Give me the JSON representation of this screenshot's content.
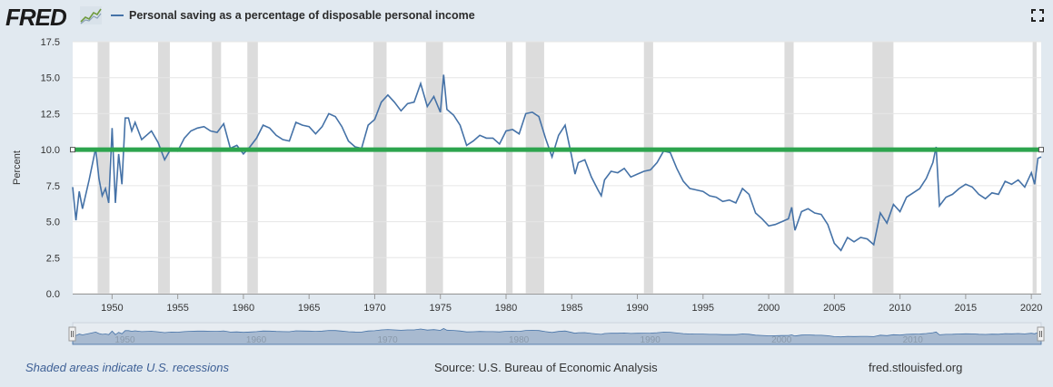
{
  "header": {
    "logo_text": "FRED",
    "series_title": "Personal saving as a percentage of disposable personal income",
    "colors": {
      "line": "#4572a7",
      "threshold": "#2da44e",
      "recession": "#dcdcdc"
    }
  },
  "footer": {
    "recession_note": "Shaded areas indicate U.S. recessions",
    "source": "Source: U.S. Bureau of Economic Analysis",
    "site": "fred.stlouisfed.org"
  },
  "chart_data": {
    "type": "line",
    "ylabel": "Percent",
    "xlabel": "",
    "xlim": [
      1947.0,
      2020.75
    ],
    "ylim": [
      0,
      17.5
    ],
    "yticks": [
      "0.0",
      "2.5",
      "5.0",
      "7.5",
      "10.0",
      "12.5",
      "15.0",
      "17.5"
    ],
    "xticks": [
      "1950",
      "1955",
      "1960",
      "1965",
      "1970",
      "1975",
      "1980",
      "1985",
      "1990",
      "1995",
      "2000",
      "2005",
      "2010",
      "2015",
      "2020"
    ],
    "grid": true,
    "threshold_line": 10.0,
    "navigator_labels": [
      "1950",
      "1960",
      "1970",
      "1980",
      "1990",
      "2000",
      "2010"
    ],
    "recessions": [
      [
        1948.9,
        1949.8
      ],
      [
        1953.5,
        1954.4
      ],
      [
        1957.6,
        1958.3
      ],
      [
        1960.3,
        1961.1
      ],
      [
        1969.9,
        1970.9
      ],
      [
        1973.9,
        1975.2
      ],
      [
        1980.0,
        1980.5
      ],
      [
        1981.5,
        1982.9
      ],
      [
        1990.5,
        1991.2
      ],
      [
        2001.2,
        2001.9
      ],
      [
        2007.9,
        2009.5
      ],
      [
        2020.1,
        2020.4
      ]
    ],
    "series": [
      {
        "name": "Personal saving as a percentage of disposable personal income",
        "x": [
          1947.0,
          1947.25,
          1947.5,
          1947.75,
          1948.25,
          1948.75,
          1949.0,
          1949.25,
          1949.5,
          1949.75,
          1950.0,
          1950.25,
          1950.5,
          1950.75,
          1951.0,
          1951.25,
          1951.5,
          1951.75,
          1952.25,
          1952.75,
          1953.0,
          1953.5,
          1954.0,
          1954.5,
          1955.0,
          1955.5,
          1956.0,
          1956.5,
          1957.0,
          1957.5,
          1958.0,
          1958.5,
          1959.0,
          1959.5,
          1960.0,
          1960.5,
          1961.0,
          1961.5,
          1962.0,
          1962.5,
          1963.0,
          1963.5,
          1964.0,
          1964.5,
          1965.0,
          1965.5,
          1966.0,
          1966.5,
          1967.0,
          1967.5,
          1968.0,
          1968.5,
          1969.0,
          1969.5,
          1970.0,
          1970.5,
          1971.0,
          1971.5,
          1972.0,
          1972.5,
          1973.0,
          1973.5,
          1974.0,
          1974.5,
          1975.0,
          1975.25,
          1975.5,
          1976.0,
          1976.5,
          1977.0,
          1977.5,
          1978.0,
          1978.5,
          1979.0,
          1979.5,
          1980.0,
          1980.5,
          1981.0,
          1981.5,
          1982.0,
          1982.5,
          1983.0,
          1983.5,
          1984.0,
          1984.5,
          1985.0,
          1985.25,
          1985.5,
          1986.0,
          1986.5,
          1987.0,
          1987.25,
          1987.5,
          1988.0,
          1988.5,
          1989.0,
          1989.5,
          1990.0,
          1990.5,
          1991.0,
          1991.5,
          1992.0,
          1992.5,
          1993.0,
          1993.5,
          1994.0,
          1994.5,
          1995.0,
          1995.5,
          1996.0,
          1996.5,
          1997.0,
          1997.5,
          1998.0,
          1998.5,
          1999.0,
          1999.5,
          2000.0,
          2000.5,
          2001.0,
          2001.5,
          2001.75,
          2002.0,
          2002.5,
          2003.0,
          2003.5,
          2004.0,
          2004.5,
          2005.0,
          2005.5,
          2006.0,
          2006.5,
          2007.0,
          2007.5,
          2008.0,
          2008.25,
          2008.5,
          2009.0,
          2009.5,
          2010.0,
          2010.5,
          2011.0,
          2011.5,
          2012.0,
          2012.5,
          2012.75,
          2013.0,
          2013.5,
          2014.0,
          2014.5,
          2015.0,
          2015.5,
          2016.0,
          2016.5,
          2017.0,
          2017.5,
          2018.0,
          2018.5,
          2019.0,
          2019.5,
          2020.0,
          2020.25,
          2020.5,
          2020.75
        ],
        "y": [
          7.4,
          5.1,
          7.1,
          5.9,
          7.9,
          10.1,
          8.0,
          6.8,
          7.3,
          6.3,
          11.5,
          6.3,
          9.7,
          7.6,
          12.2,
          12.2,
          11.3,
          11.9,
          10.7,
          11.1,
          11.3,
          10.5,
          9.3,
          10.1,
          9.9,
          10.8,
          11.3,
          11.5,
          11.6,
          11.3,
          11.2,
          11.8,
          10.1,
          10.3,
          9.7,
          10.2,
          10.8,
          11.7,
          11.5,
          11.0,
          10.7,
          10.6,
          11.9,
          11.7,
          11.6,
          11.1,
          11.6,
          12.5,
          12.3,
          11.6,
          10.6,
          10.2,
          10.1,
          11.7,
          12.1,
          13.3,
          13.8,
          13.3,
          12.7,
          13.2,
          13.3,
          14.6,
          13.0,
          13.7,
          12.6,
          15.2,
          12.8,
          12.4,
          11.7,
          10.3,
          10.6,
          11.0,
          10.8,
          10.8,
          10.4,
          11.3,
          11.4,
          11.1,
          12.5,
          12.6,
          12.3,
          10.8,
          9.5,
          11.0,
          11.7,
          9.5,
          8.3,
          9.1,
          9.3,
          8.1,
          7.2,
          6.8,
          7.9,
          8.5,
          8.4,
          8.7,
          8.1,
          8.3,
          8.5,
          8.6,
          9.1,
          9.9,
          9.8,
          8.7,
          7.8,
          7.3,
          7.2,
          7.1,
          6.8,
          6.7,
          6.4,
          6.5,
          6.3,
          7.3,
          6.9,
          5.6,
          5.2,
          4.7,
          4.8,
          5.0,
          5.2,
          6.0,
          4.4,
          5.7,
          5.9,
          5.6,
          5.5,
          4.8,
          3.5,
          3.0,
          3.9,
          3.6,
          3.9,
          3.8,
          3.4,
          4.5,
          5.6,
          4.9,
          6.2,
          5.7,
          6.7,
          7.0,
          7.3,
          8.0,
          9.1,
          10.2,
          6.1,
          6.7,
          6.9,
          7.3,
          7.6,
          7.4,
          6.9,
          6.6,
          7.0,
          6.9,
          7.8,
          7.6,
          7.9,
          7.4,
          8.4,
          7.6,
          9.4,
          9.5
        ]
      }
    ]
  }
}
